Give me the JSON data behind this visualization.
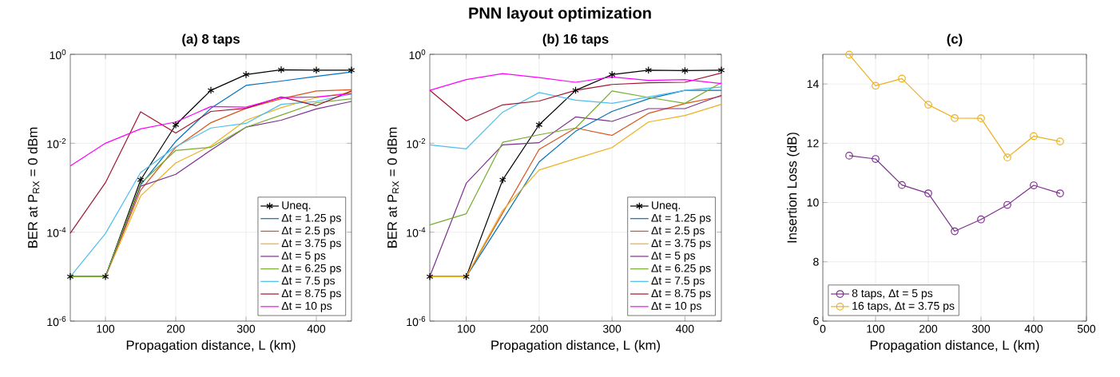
{
  "chart_data": [
    {
      "type": "line",
      "title": "(a) 8 taps",
      "xlabel": "Propagation distance, L (km)",
      "ylabel": "BER at P$_{RX}$ = 0 dBm",
      "annotations": [
        "PNN layout optimization"
      ],
      "x": [
        50,
        100,
        150,
        200,
        250,
        300,
        350,
        400,
        450
      ],
      "xlim": [
        50,
        450
      ],
      "xticks": [
        100,
        200,
        300,
        400
      ],
      "ylim": [
        1e-06,
        1
      ],
      "yticks": [
        {
          "value": 1e-06,
          "label": "10$^{-6}$"
        },
        {
          "value": 0.0001,
          "label": "10$^{-4}$"
        },
        {
          "value": 0.01,
          "label": "10$^{-2}$"
        },
        {
          "value": 1,
          "label": "10$^{0}$"
        }
      ],
      "log": "y",
      "grid": true,
      "legend": "bottom right",
      "marker": "none",
      "line_style": "solid",
      "series": [
        {
          "name": "Uneq.",
          "color": "#000000",
          "marker": "cross",
          "values": [
            1e-05,
            1e-05,
            0.0015,
            0.026,
            0.155,
            0.35,
            0.45,
            0.44,
            0.44
          ]
        },
        {
          "name": "Δt = 1.25 ps",
          "color": "#0072bd",
          "values": [
            1e-05,
            1e-05,
            0.00115,
            0.011,
            0.061,
            0.2,
            0.25,
            0.32,
            0.4
          ]
        },
        {
          "name": "Δt = 2.5 ps",
          "color": "#d95319",
          "values": [
            1e-05,
            1e-05,
            0.00088,
            0.0081,
            0.029,
            0.061,
            0.1,
            0.15,
            0.16
          ]
        },
        {
          "name": "Δt = 3.75 ps",
          "color": "#edb120",
          "values": [
            1e-05,
            1e-05,
            0.00065,
            0.0036,
            0.0087,
            0.033,
            0.063,
            0.107,
            0.14
          ]
        },
        {
          "name": "Δt = 5 ps",
          "color": "#7e2f8e",
          "values": [
            1e-05,
            1e-05,
            0.00108,
            0.002,
            0.007,
            0.023,
            0.033,
            0.059,
            0.087
          ]
        },
        {
          "name": "Δt = 6.25 ps",
          "color": "#77ac30",
          "values": [
            1e-05,
            1e-05,
            0.00124,
            0.0069,
            0.0081,
            0.023,
            0.043,
            0.081,
            0.1
          ]
        },
        {
          "name": "Δt = 7.5 ps",
          "color": "#4dbeee",
          "values": [
            1e-05,
            9.3e-05,
            0.0022,
            0.0083,
            0.022,
            0.028,
            0.075,
            0.087,
            0.128
          ]
        },
        {
          "name": "Δt = 8.75 ps",
          "color": "#a2142f",
          "values": [
            9.5e-05,
            0.0013,
            0.051,
            0.017,
            0.052,
            0.061,
            0.11,
            0.07,
            0.15
          ]
        },
        {
          "name": "Δt = 10 ps",
          "color": "#ff00ff",
          "values": [
            0.0031,
            0.01,
            0.021,
            0.03,
            0.067,
            0.065,
            0.107,
            0.11,
            0.13
          ]
        }
      ]
    },
    {
      "type": "line",
      "title": "(b) 16 taps",
      "xlabel": "Propagation distance, L (km)",
      "ylabel": "BER at P$_{RX}$ = 0 dBm",
      "x": [
        50,
        100,
        150,
        200,
        250,
        300,
        350,
        400,
        450
      ],
      "xlim": [
        50,
        450
      ],
      "xticks": [
        100,
        200,
        300,
        400
      ],
      "ylim": [
        1e-06,
        1
      ],
      "yticks": [
        {
          "value": 1e-06,
          "label": "10$^{-6}$"
        },
        {
          "value": 0.0001,
          "label": "10$^{-4}$"
        },
        {
          "value": 0.01,
          "label": "10$^{-2}$"
        },
        {
          "value": 1,
          "label": "10$^{0}$"
        }
      ],
      "log": "y",
      "grid": true,
      "legend": "bottom right",
      "marker": "none",
      "line_style": "solid",
      "series": [
        {
          "name": "Uneq.",
          "color": "#000000",
          "marker": "cross",
          "values": [
            1e-05,
            1e-05,
            0.0015,
            0.026,
            0.155,
            0.35,
            0.44,
            0.43,
            0.44
          ]
        },
        {
          "name": "Δt = 1.25 ps",
          "color": "#0072bd",
          "values": [
            1e-05,
            1e-05,
            0.00019,
            0.0038,
            0.0186,
            0.052,
            0.1,
            0.155,
            0.155
          ]
        },
        {
          "name": "Δt = 2.5 ps",
          "color": "#d95319",
          "values": [
            1e-05,
            1e-05,
            0.00027,
            0.0073,
            0.022,
            0.015,
            0.047,
            0.078,
            0.114
          ]
        },
        {
          "name": "Δt = 3.75 ps",
          "color": "#edb120",
          "values": [
            1e-05,
            1e-05,
            0.00031,
            0.0025,
            0.0045,
            0.008,
            0.03,
            0.042,
            0.075
          ]
        },
        {
          "name": "Δt = 5 ps",
          "color": "#7e2f8e",
          "values": [
            1e-05,
            0.00126,
            0.0092,
            0.0103,
            0.039,
            0.031,
            0.06,
            0.06,
            0.12
          ]
        },
        {
          "name": "Δt = 6.25 ps",
          "color": "#77ac30",
          "values": [
            0.000145,
            0.00026,
            0.0105,
            0.0155,
            0.022,
            0.15,
            0.107,
            0.079,
            0.23
          ]
        },
        {
          "name": "Δt = 7.5 ps",
          "color": "#4dbeee",
          "values": [
            0.0092,
            0.0075,
            0.05,
            0.138,
            0.093,
            0.079,
            0.11,
            0.155,
            0.185
          ]
        },
        {
          "name": "Δt = 8.75 ps",
          "color": "#a2142f",
          "values": [
            0.155,
            0.032,
            0.073,
            0.089,
            0.155,
            0.21,
            0.23,
            0.235,
            0.38
          ]
        },
        {
          "name": "Δt = 10 ps",
          "color": "#ff00ff",
          "values": [
            0.155,
            0.27,
            0.37,
            0.3,
            0.235,
            0.31,
            0.26,
            0.27,
            0.22
          ]
        }
      ]
    },
    {
      "type": "line",
      "title": "(c)",
      "xlabel": "Propagation distance, L (km)",
      "ylabel": "Insertion Loss (dB)",
      "x": [
        50,
        100,
        150,
        200,
        250,
        300,
        350,
        400,
        450
      ],
      "xlim": [
        0,
        500
      ],
      "xticks": [
        0,
        100,
        200,
        300,
        400,
        500
      ],
      "ylim": [
        6,
        15
      ],
      "yticks": [
        6,
        8,
        10,
        12,
        14
      ],
      "grid": true,
      "legend": "bottom left",
      "marker": "circle",
      "line_style": "solid",
      "series": [
        {
          "name": "8 taps, Δt = 5 ps",
          "color": "#7e2f8e",
          "values": [
            11.58,
            11.47,
            10.59,
            10.31,
            9.03,
            9.43,
            9.92,
            10.58,
            10.31
          ]
        },
        {
          "name": "16 taps, Δt = 3.75 ps",
          "color": "#edb120",
          "values": [
            14.99,
            13.94,
            14.18,
            13.3,
            12.85,
            12.84,
            11.52,
            12.24,
            12.06
          ]
        }
      ]
    }
  ]
}
